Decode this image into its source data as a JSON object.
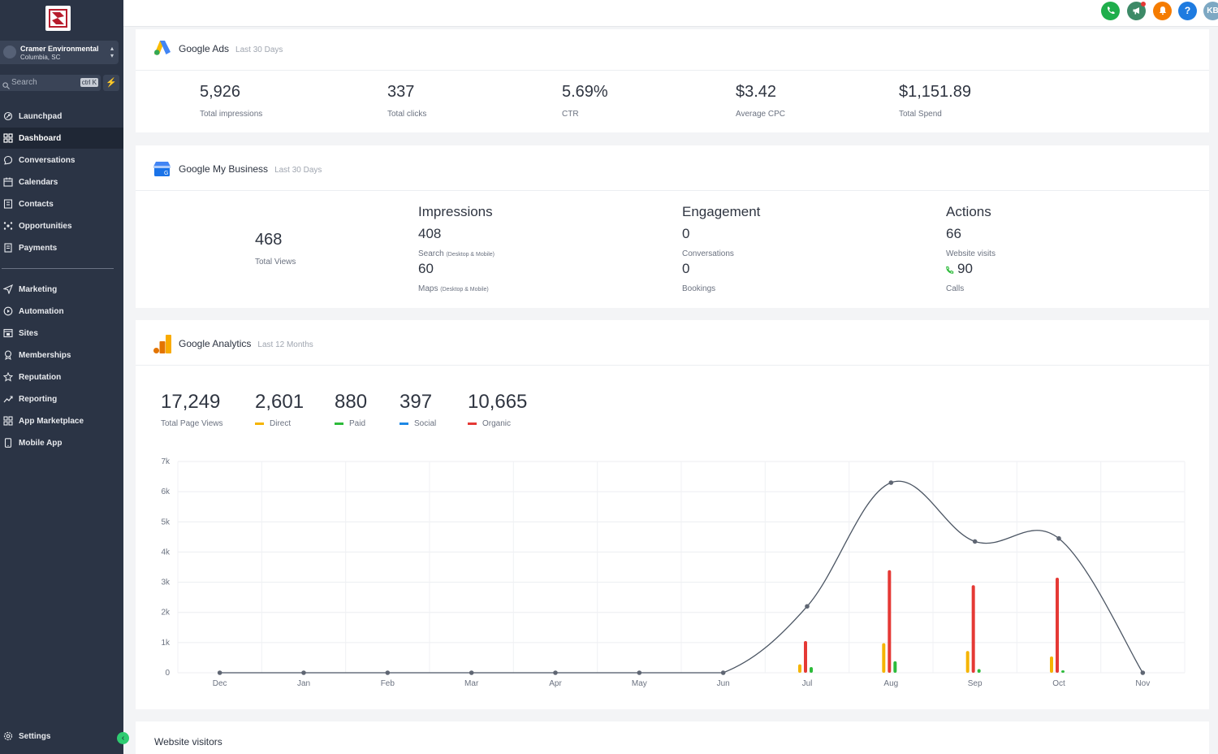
{
  "colors": {
    "sidebar_bg": "#2b3445",
    "active_bg": "#1f2735",
    "accent_green": "#2ecc71",
    "direct": "#f5b400",
    "paid": "#2dbb3a",
    "social": "#1e88e5",
    "organic": "#e53935",
    "line": "#4b5563"
  },
  "sidebar": {
    "account_name": "Cramer Environmental",
    "account_location": "Columbia, SC",
    "search_placeholder": "Search",
    "search_shortcut": "ctrl K",
    "items": [
      {
        "label": "Launchpad",
        "icon": "rocket-icon"
      },
      {
        "label": "Dashboard",
        "icon": "grid-icon",
        "active": true
      },
      {
        "label": "Conversations",
        "icon": "chat-bubble-icon"
      },
      {
        "label": "Calendars",
        "icon": "calendar-icon"
      },
      {
        "label": "Contacts",
        "icon": "contact-card-icon"
      },
      {
        "label": "Opportunities",
        "icon": "funnel-icon"
      },
      {
        "label": "Payments",
        "icon": "receipt-icon"
      },
      {
        "label": "Marketing",
        "icon": "send-icon"
      },
      {
        "label": "Automation",
        "icon": "play-circle-icon"
      },
      {
        "label": "Sites",
        "icon": "browser-window-icon"
      },
      {
        "label": "Memberships",
        "icon": "award-icon"
      },
      {
        "label": "Reputation",
        "icon": "star-icon"
      },
      {
        "label": "Reporting",
        "icon": "trend-line-icon"
      },
      {
        "label": "App Marketplace",
        "icon": "apps-grid-icon"
      },
      {
        "label": "Mobile App",
        "icon": "phone-device-icon"
      }
    ],
    "settings_label": "Settings"
  },
  "topbar": {
    "avatar_initials": "KB"
  },
  "google_ads": {
    "title": "Google Ads",
    "period": "Last 30 Days",
    "stats": [
      {
        "value": "5,926",
        "label": "Total impressions"
      },
      {
        "value": "337",
        "label": "Total clicks"
      },
      {
        "value": "5.69%",
        "label": "CTR"
      },
      {
        "value": "$3.42",
        "label": "Average CPC"
      },
      {
        "value": "$1,151.89",
        "label": "Total Spend"
      }
    ]
  },
  "gmb": {
    "title": "Google My Business",
    "period": "Last 30 Days",
    "total_views": "468",
    "total_views_label": "Total Views",
    "impressions": {
      "heading": "Impressions",
      "search_value": "408",
      "search_label": "Search",
      "search_note": "(Desktop & Mobile)",
      "maps_value": "60",
      "maps_label": "Maps",
      "maps_note": "(Desktop & Mobile)"
    },
    "engagement": {
      "heading": "Engagement",
      "conversations_value": "0",
      "conversations_label": "Conversations",
      "bookings_value": "0",
      "bookings_label": "Bookings"
    },
    "actions": {
      "heading": "Actions",
      "website_value": "66",
      "website_label": "Website visits",
      "calls_value": "90",
      "calls_label": "Calls"
    }
  },
  "analytics": {
    "title": "Google Analytics",
    "period": "Last 12 Months",
    "summary": [
      {
        "value": "17,249",
        "label": "Total Page Views"
      },
      {
        "value": "2,601",
        "label": "Direct",
        "color": "#f5b400"
      },
      {
        "value": "880",
        "label": "Paid",
        "color": "#2dbb3a"
      },
      {
        "value": "397",
        "label": "Social",
        "color": "#1e88e5"
      },
      {
        "value": "10,665",
        "label": "Organic",
        "color": "#e53935"
      }
    ]
  },
  "chart_data": {
    "type": "line",
    "categories": [
      "Dec",
      "Jan",
      "Feb",
      "Mar",
      "Apr",
      "May",
      "Jun",
      "Jul",
      "Aug",
      "Sep",
      "Oct",
      "Nov"
    ],
    "ylim": [
      0,
      7000
    ],
    "yticks": [
      "0",
      "1k",
      "2k",
      "3k",
      "4k",
      "5k",
      "6k",
      "7k"
    ],
    "ytick_values": [
      0,
      1000,
      2000,
      3000,
      4000,
      5000,
      6000,
      7000
    ],
    "grid": true,
    "series": [
      {
        "values": [
          0,
          0,
          0,
          0,
          0,
          0,
          0,
          2200,
          6300,
          4350,
          4450,
          0
        ],
        "kind": "line"
      },
      {
        "name": "Direct",
        "kind": "bar",
        "values": [
          0,
          0,
          0,
          0,
          0,
          0,
          0,
          280,
          980,
          720,
          540,
          0
        ]
      },
      {
        "name": "Organic",
        "kind": "bar",
        "values": [
          0,
          0,
          0,
          0,
          0,
          0,
          0,
          1050,
          3400,
          2900,
          3150,
          0
        ]
      },
      {
        "name": "Paid",
        "kind": "bar",
        "values": [
          0,
          0,
          0,
          0,
          0,
          0,
          0,
          190,
          380,
          120,
          80,
          0
        ]
      }
    ]
  },
  "website_visitors": {
    "title": "Website visitors"
  }
}
